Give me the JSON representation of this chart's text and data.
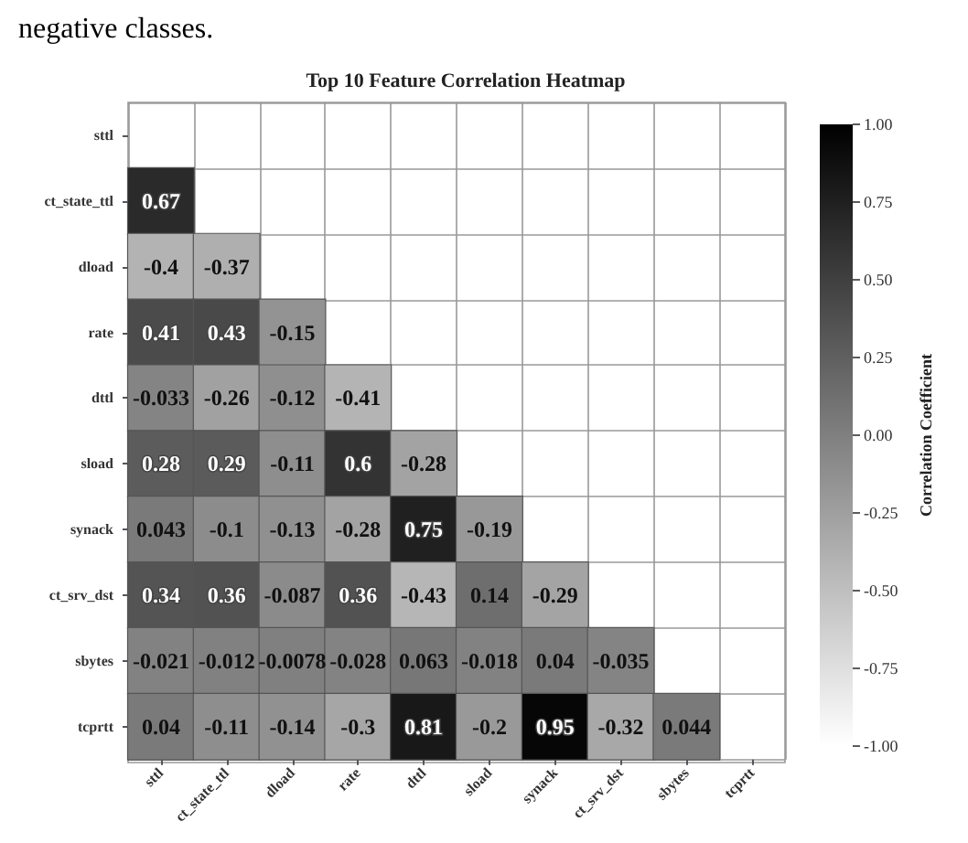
{
  "chart_data": {
    "type": "heatmap",
    "title": "Top 10 Feature Correlation Heatmap",
    "clabel": "Correlation Coefficient",
    "annotations": [
      "negative classes."
    ],
    "categories": [
      "sttl",
      "ct_state_ttl",
      "dload",
      "rate",
      "dttl",
      "sload",
      "synack",
      "ct_srv_dst",
      "sbytes",
      "tcprtt"
    ],
    "y_categories": [
      "sttl",
      "ct_state_ttl",
      "dload",
      "rate",
      "dttl",
      "sload",
      "synack",
      "ct_srv_dst",
      "sbytes",
      "tcprtt"
    ],
    "cells": [
      [
        null,
        null,
        null,
        null,
        null,
        null,
        null,
        null,
        null,
        null
      ],
      [
        0.67,
        null,
        null,
        null,
        null,
        null,
        null,
        null,
        null,
        null
      ],
      [
        -0.4,
        -0.37,
        null,
        null,
        null,
        null,
        null,
        null,
        null,
        null
      ],
      [
        0.41,
        0.43,
        -0.15,
        null,
        null,
        null,
        null,
        null,
        null,
        null
      ],
      [
        -0.033,
        -0.26,
        -0.12,
        -0.41,
        null,
        null,
        null,
        null,
        null,
        null
      ],
      [
        0.28,
        0.29,
        -0.11,
        0.6,
        -0.28,
        null,
        null,
        null,
        null,
        null
      ],
      [
        0.043,
        -0.1,
        -0.13,
        -0.28,
        0.75,
        -0.19,
        null,
        null,
        null,
        null
      ],
      [
        0.34,
        0.36,
        -0.087,
        0.36,
        -0.43,
        0.14,
        -0.29,
        null,
        null,
        null
      ],
      [
        -0.021,
        -0.012,
        -0.0078,
        -0.028,
        0.063,
        -0.018,
        0.04,
        -0.035,
        null,
        null
      ],
      [
        0.04,
        -0.11,
        -0.14,
        -0.3,
        0.81,
        -0.2,
        0.95,
        -0.32,
        0.044,
        null
      ]
    ],
    "clim": [
      -1,
      1
    ],
    "cticks": [
      {
        "value": -1,
        "label": "-1.00"
      },
      {
        "value": -0.75,
        "label": "-0.75"
      },
      {
        "value": -0.5,
        "label": "-0.50"
      },
      {
        "value": -0.25,
        "label": "-0.25"
      },
      {
        "value": 0,
        "label": "0.00"
      },
      {
        "value": 0.25,
        "label": "0.25"
      },
      {
        "value": 0.5,
        "label": "0.50"
      },
      {
        "value": 0.75,
        "label": "0.75"
      },
      {
        "value": 1,
        "label": "1.00"
      }
    ],
    "data_labels": true,
    "grid": true
  }
}
